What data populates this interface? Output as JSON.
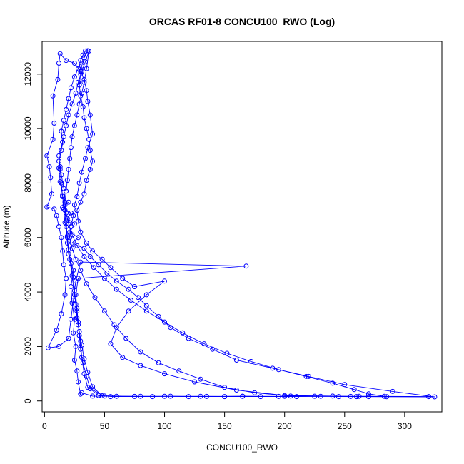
{
  "chart_data": {
    "type": "scatter",
    "title": "ORCAS RF01-8 CONCU100_RWO (Log)",
    "xlabel": "CONCU100_RWO",
    "ylabel": "Altitude (m)",
    "xlim": [
      -2,
      331
    ],
    "ylim": [
      -400,
      13200
    ],
    "xticks": [
      0,
      50,
      100,
      150,
      200,
      250,
      300
    ],
    "yticks": [
      0,
      2000,
      4000,
      6000,
      8000,
      10000,
      12000
    ],
    "grid": false,
    "legend": "none",
    "color": "#0000ff",
    "series": [
      {
        "points": [
          [
            20,
            7300
          ],
          [
            15,
            7100
          ],
          [
            22,
            6900
          ],
          [
            19,
            6700
          ],
          [
            25,
            6500
          ],
          [
            21,
            6200
          ],
          [
            28,
            6000
          ],
          [
            23,
            5800
          ],
          [
            33,
            5600
          ],
          [
            38,
            5300
          ],
          [
            45,
            5000
          ],
          [
            52,
            4700
          ],
          [
            60,
            4400
          ],
          [
            70,
            4100
          ],
          [
            78,
            3800
          ],
          [
            85,
            3500
          ],
          [
            95,
            3100
          ],
          [
            105,
            2700
          ],
          [
            120,
            2300
          ],
          [
            140,
            1900
          ],
          [
            160,
            1500
          ],
          [
            190,
            1200
          ],
          [
            220,
            900
          ],
          [
            250,
            600
          ],
          [
            290,
            350
          ],
          [
            325,
            150
          ],
          [
            260,
            160
          ],
          [
            200,
            170
          ],
          [
            150,
            160
          ],
          [
            100,
            170
          ],
          [
            60,
            170
          ],
          [
            40,
            180
          ],
          [
            31,
            300
          ],
          [
            30,
            250
          ],
          [
            28,
            700
          ],
          [
            27,
            1100
          ],
          [
            25,
            1500
          ],
          [
            26,
            2000
          ],
          [
            24,
            2500
          ],
          [
            25,
            3000
          ],
          [
            23,
            3600
          ],
          [
            22,
            4200
          ],
          [
            24,
            4800
          ],
          [
            20,
            5400
          ],
          [
            19,
            6000
          ],
          [
            18,
            6600
          ],
          [
            17,
            7200
          ],
          [
            16,
            7800
          ],
          [
            14,
            8300
          ],
          [
            13,
            8600
          ],
          [
            12,
            9000
          ],
          [
            15,
            9500
          ],
          [
            14,
            9900
          ],
          [
            16,
            10300
          ],
          [
            18,
            10700
          ],
          [
            20,
            11100
          ],
          [
            22,
            11500
          ],
          [
            25,
            11900
          ],
          [
            28,
            12200
          ],
          [
            30,
            12500
          ],
          [
            32,
            12700
          ],
          [
            34,
            12850
          ],
          [
            36,
            12860
          ],
          [
            33,
            12600
          ],
          [
            31,
            12300
          ],
          [
            30,
            12000
          ],
          [
            29,
            11600
          ],
          [
            30,
            11200
          ],
          [
            32,
            10800
          ],
          [
            33,
            10400
          ],
          [
            35,
            10000
          ],
          [
            37,
            9600
          ],
          [
            38,
            9200
          ],
          [
            40,
            8800
          ],
          [
            38,
            8500
          ],
          [
            35,
            8100
          ],
          [
            33,
            7600
          ],
          [
            30,
            7300
          ],
          [
            27,
            7000
          ],
          [
            28,
            6600
          ],
          [
            30,
            6200
          ],
          [
            35,
            5800
          ],
          [
            40,
            5500
          ],
          [
            48,
            5200
          ],
          [
            55,
            4900
          ],
          [
            65,
            4500
          ],
          [
            75,
            4200
          ],
          [
            100,
            4400
          ],
          [
            85,
            3900
          ],
          [
            70,
            3300
          ],
          [
            60,
            2700
          ],
          [
            55,
            2100
          ],
          [
            65,
            1600
          ],
          [
            80,
            1300
          ],
          [
            100,
            1000
          ],
          [
            125,
            700
          ],
          [
            160,
            400
          ],
          [
            200,
            200
          ],
          [
            240,
            180
          ],
          [
            270,
            160
          ],
          [
            230,
            170
          ],
          [
            180,
            160
          ],
          [
            130,
            170
          ],
          [
            90,
            160
          ],
          [
            55,
            160
          ],
          [
            45,
            200
          ],
          [
            38,
            450
          ],
          [
            35,
            900
          ],
          [
            32,
            1400
          ],
          [
            30,
            1900
          ],
          [
            29,
            2400
          ],
          [
            28,
            2900
          ],
          [
            27,
            3400
          ],
          [
            26,
            3900
          ],
          [
            28,
            4500
          ],
          [
            168,
            4950
          ],
          [
            30,
            5100
          ],
          [
            26,
            4400
          ],
          [
            24,
            3700
          ],
          [
            22,
            3000
          ],
          [
            20,
            2300
          ],
          [
            12,
            2000
          ],
          [
            3,
            1950
          ],
          [
            10,
            2600
          ],
          [
            14,
            3200
          ],
          [
            17,
            3900
          ],
          [
            18,
            4500
          ],
          [
            16,
            5000
          ],
          [
            15,
            5500
          ],
          [
            14,
            6000
          ],
          [
            12,
            6400
          ],
          [
            10,
            6800
          ],
          [
            8,
            7050
          ],
          [
            2,
            7120
          ],
          [
            6,
            7600
          ],
          [
            5,
            8200
          ],
          [
            4,
            8600
          ],
          [
            2,
            9000
          ],
          [
            7,
            9600
          ],
          [
            8,
            10200
          ],
          [
            7,
            11200
          ],
          [
            11,
            11800
          ],
          [
            12,
            12400
          ],
          [
            13,
            12750
          ],
          [
            18,
            12500
          ],
          [
            25,
            12400
          ],
          [
            30,
            12100
          ],
          [
            33,
            11800
          ],
          [
            35,
            11400
          ],
          [
            36,
            11000
          ],
          [
            38,
            10500
          ],
          [
            40,
            9800
          ],
          [
            36,
            9300
          ],
          [
            34,
            8900
          ],
          [
            31,
            8400
          ],
          [
            29,
            8000
          ],
          [
            27,
            7500
          ],
          [
            25,
            7200
          ],
          [
            24,
            6800
          ],
          [
            22,
            6400
          ],
          [
            21,
            6000
          ],
          [
            23,
            5600
          ],
          [
            26,
            5200
          ],
          [
            30,
            4800
          ],
          [
            35,
            4300
          ],
          [
            42,
            3800
          ],
          [
            50,
            3300
          ],
          [
            58,
            2800
          ],
          [
            68,
            2300
          ],
          [
            80,
            1800
          ],
          [
            95,
            1400
          ],
          [
            112,
            1100
          ],
          [
            130,
            800
          ],
          [
            150,
            500
          ],
          [
            175,
            300
          ],
          [
            205,
            180
          ],
          [
            245,
            160
          ],
          [
            285,
            155
          ],
          [
            320,
            160
          ],
          [
            262,
            170
          ],
          [
            210,
            160
          ],
          [
            165,
            170
          ],
          [
            120,
            160
          ],
          [
            80,
            170
          ],
          [
            50,
            180
          ],
          [
            36,
            500
          ],
          [
            33,
            1000
          ],
          [
            31,
            1600
          ],
          [
            30,
            2200
          ],
          [
            28,
            2800
          ],
          [
            27,
            3300
          ],
          [
            25,
            3900
          ],
          [
            23,
            4600
          ],
          [
            21,
            5200
          ],
          [
            19,
            5800
          ],
          [
            18,
            6400
          ],
          [
            17,
            7000
          ],
          [
            15,
            7500
          ],
          [
            14,
            8000
          ],
          [
            13,
            8500
          ],
          [
            12,
            8800
          ],
          [
            14,
            9200
          ],
          [
            16,
            9700
          ],
          [
            18,
            10100
          ],
          [
            20,
            10500
          ],
          [
            23,
            10900
          ],
          [
            26,
            11300
          ],
          [
            28,
            11700
          ],
          [
            31,
            12100
          ],
          [
            34,
            12450
          ],
          [
            37,
            12850
          ],
          [
            35,
            12200
          ],
          [
            33,
            11700
          ],
          [
            31,
            11300
          ],
          [
            29,
            10900
          ],
          [
            27,
            10500
          ],
          [
            25,
            10100
          ],
          [
            23,
            9700
          ],
          [
            22,
            9300
          ],
          [
            21,
            8900
          ],
          [
            20,
            8500
          ],
          [
            19,
            8100
          ],
          [
            18,
            7700
          ],
          [
            17,
            7300
          ],
          [
            18,
            6900
          ],
          [
            20,
            6500
          ],
          [
            23,
            6100
          ],
          [
            27,
            5700
          ],
          [
            33,
            5300
          ],
          [
            41,
            4900
          ],
          [
            50,
            4500
          ],
          [
            60,
            4100
          ],
          [
            72,
            3700
          ],
          [
            85,
            3300
          ],
          [
            100,
            2900
          ],
          [
            115,
            2500
          ],
          [
            133,
            2100
          ],
          [
            152,
            1750
          ],
          [
            172,
            1450
          ],
          [
            195,
            1150
          ],
          [
            218,
            900
          ],
          [
            240,
            650
          ],
          [
            258,
            420
          ],
          [
            270,
            260
          ],
          [
            283,
            170
          ],
          [
            255,
            165
          ],
          [
            225,
            175
          ],
          [
            195,
            165
          ],
          [
            165,
            175
          ],
          [
            135,
            165
          ],
          [
            105,
            175
          ],
          [
            75,
            165
          ],
          [
            48,
            190
          ],
          [
            40,
            520
          ],
          [
            36,
            1050
          ],
          [
            33,
            1550
          ],
          [
            31,
            2050
          ],
          [
            29,
            2550
          ],
          [
            27,
            3050
          ],
          [
            26,
            3550
          ],
          [
            25,
            4050
          ],
          [
            24,
            4550
          ],
          [
            22,
            5050
          ],
          [
            20,
            5550
          ],
          [
            19,
            6050
          ],
          [
            17,
            6550
          ],
          [
            16,
            7050
          ],
          [
            15,
            7550
          ],
          [
            13,
            8050
          ],
          [
            12,
            8550
          ]
        ]
      }
    ]
  }
}
